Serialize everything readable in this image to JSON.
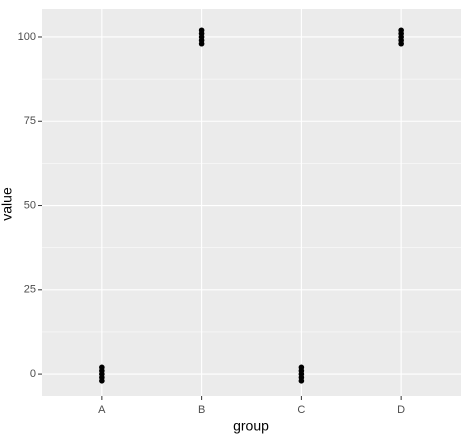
{
  "chart_data": {
    "type": "scatter",
    "xlabel": "group",
    "ylabel": "value",
    "categories": [
      "A",
      "B",
      "C",
      "D"
    ],
    "x": [
      "A",
      "A",
      "A",
      "A",
      "A",
      "B",
      "B",
      "B",
      "B",
      "B",
      "C",
      "C",
      "C",
      "C",
      "C",
      "D",
      "D",
      "D",
      "D",
      "D"
    ],
    "values": [
      2,
      1,
      0,
      -1,
      -2,
      102,
      101,
      100,
      99,
      98,
      2,
      1,
      0,
      -1,
      -2,
      102,
      101,
      100,
      99,
      98
    ],
    "color": "#000000",
    "ylim": [
      -6.5,
      108.3
    ],
    "yticks": [
      0,
      25,
      50,
      75,
      100
    ],
    "grid": true,
    "minor_grid": true
  }
}
